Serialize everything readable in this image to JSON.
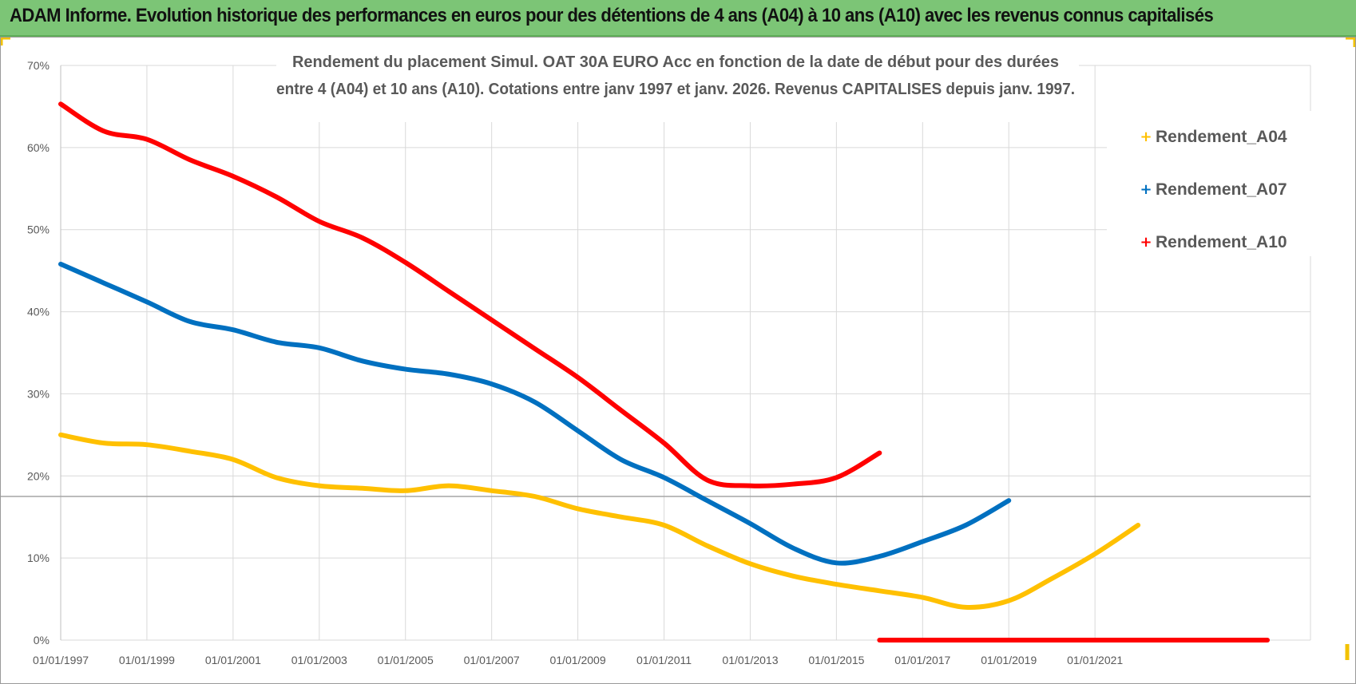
{
  "header": {
    "title": "ADAM Informe. Evolution historique des performances en euros pour des détentions de 4 ans (A04) à 10 ans (A10) avec les revenus connus capitalisés"
  },
  "colors": {
    "header_bg": "#7cc576",
    "accent_corner": "#f2c200",
    "A04": "#ffc000",
    "A07": "#0070c0",
    "A10": "#ff0000"
  },
  "chart_data": {
    "type": "line",
    "title_lines": [
      "Rendement du placement Simul. OAT 30A EURO Acc  en fonction de la date de début pour des durées",
      "entre 4 (A04) et 10 ans (A10). Cotations entre janv 1997 et janv. 2026. Revenus CAPITALISES depuis janv. 1997."
    ],
    "xlabel": "",
    "ylabel": "",
    "xlim": [
      1997,
      2026
    ],
    "ylim": [
      0,
      70
    ],
    "y_ticks": [
      0,
      10,
      20,
      30,
      40,
      50,
      60,
      70
    ],
    "y_tick_labels": [
      "0%",
      "10%",
      "20%",
      "30%",
      "40%",
      "50%",
      "60%",
      "70%"
    ],
    "x_ticks": [
      1997,
      1999,
      2001,
      2003,
      2005,
      2007,
      2009,
      2011,
      2013,
      2015,
      2017,
      2019,
      2021
    ],
    "x_tick_labels": [
      "01/01/1997",
      "01/01/1999",
      "01/01/2001",
      "01/01/2003",
      "01/01/2005",
      "01/01/2007",
      "01/01/2009",
      "01/01/2011",
      "01/01/2013",
      "01/01/2015",
      "01/01/2017",
      "01/01/2019",
      "01/01/2021"
    ],
    "grid": true,
    "legend_position": "right",
    "series": [
      {
        "name": "Rendement_A04",
        "color": "#ffc000",
        "x": [
          1997,
          1998,
          1999,
          2000,
          2001,
          2002,
          2003,
          2004,
          2005,
          2006,
          2007,
          2008,
          2009,
          2010,
          2011,
          2012,
          2013,
          2014,
          2015,
          2016,
          2017,
          2018,
          2019,
          2020,
          2021,
          2022
        ],
        "y": [
          25,
          24,
          23.8,
          23,
          22,
          19.8,
          18.8,
          18.5,
          18.2,
          18.8,
          18.2,
          17.5,
          16,
          15,
          14,
          11.5,
          9.3,
          7.8,
          6.8,
          6,
          5.2,
          4,
          4.8,
          7.5,
          10.5,
          14
        ]
      },
      {
        "name": "Rendement_A07",
        "color": "#0070c0",
        "x": [
          1997,
          1998,
          1999,
          2000,
          2001,
          2002,
          2003,
          2004,
          2005,
          2006,
          2007,
          2008,
          2009,
          2010,
          2011,
          2012,
          2013,
          2014,
          2015,
          2016,
          2017,
          2018,
          2019
        ],
        "y": [
          45.8,
          43.5,
          41.2,
          38.8,
          37.8,
          36.3,
          35.6,
          34,
          33,
          32.4,
          31.2,
          29,
          25.5,
          22,
          19.8,
          17,
          14.2,
          11.2,
          9.4,
          10.2,
          12,
          14,
          17
        ]
      },
      {
        "name": "Rendement_A10",
        "color": "#ff0000",
        "x": [
          1997,
          1998,
          1999,
          2000,
          2001,
          2002,
          2003,
          2004,
          2005,
          2006,
          2007,
          2008,
          2009,
          2010,
          2011,
          2012,
          2013,
          2014,
          2015,
          2016
        ],
        "y": [
          65.3,
          62,
          61,
          58.5,
          56.5,
          54,
          51,
          49,
          46,
          42.5,
          39,
          35.5,
          32,
          28,
          24,
          19.5,
          18.8,
          19,
          19.8,
          22.8
        ]
      }
    ],
    "baseline_red": {
      "x": [
        2016,
        2025
      ],
      "y": [
        0,
        0
      ]
    }
  }
}
